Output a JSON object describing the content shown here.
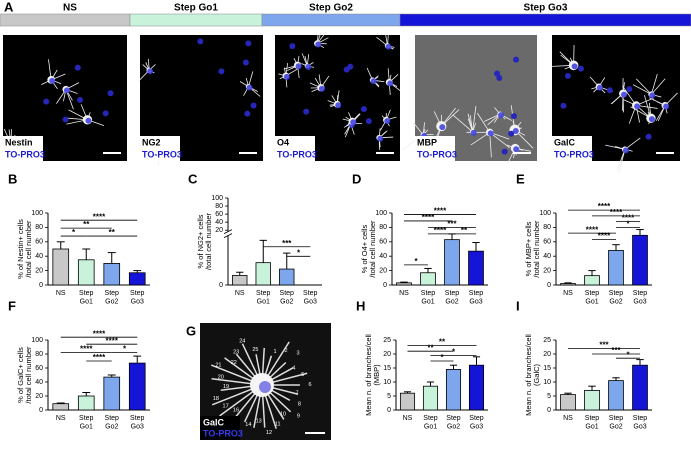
{
  "panel_a": {
    "label": "A",
    "stages": [
      {
        "name": "NS",
        "color": "#c8c8c8"
      },
      {
        "name": "Step Go1",
        "color": "#c9f2db"
      },
      {
        "name": "Step Go2",
        "color": "#7ea6ec"
      },
      {
        "name": "Step Go3",
        "color": "#1515d8"
      }
    ],
    "images": [
      {
        "label": "Nestin",
        "stain": "TO-PRO3"
      },
      {
        "label": "NG2",
        "stain": "TO-PRO3"
      },
      {
        "label": "O4",
        "stain": "TO-PRO3"
      },
      {
        "label": "MBP",
        "stain": "TO-PRO3"
      },
      {
        "label": "GalC",
        "stain": "TO-PRO3"
      }
    ]
  },
  "panel_g": {
    "label": "G",
    "image_label": "GalC",
    "stain": "TO-PRO3",
    "numbers": [
      "1",
      "2",
      "3",
      "4",
      "5",
      "6",
      "7",
      "8",
      "9",
      "10",
      "11",
      "12",
      "13",
      "14",
      "15",
      "16",
      "17",
      "18",
      "19",
      "20",
      "21",
      "22",
      "23",
      "24",
      "25"
    ]
  },
  "chart_data": [
    {
      "type": "bar",
      "panel": "B",
      "ylabel": [
        "% of Nestin+ cells",
        "/total cell number"
      ],
      "categories": [
        [
          "NS"
        ],
        [
          "Step",
          "Go1"
        ],
        [
          "Step",
          "Go2"
        ],
        [
          "Step",
          "Go3"
        ]
      ],
      "colors": [
        "#c8c8c8",
        "#c9f2db",
        "#7ea6ec",
        "#1515d8"
      ],
      "values": [
        50,
        35,
        30,
        17
      ],
      "errors": [
        10,
        15,
        15,
        3
      ],
      "ylim": [
        0,
        100
      ],
      "yticks": [
        0,
        20,
        40,
        60,
        80,
        100
      ],
      "significance": [
        {
          "from": 0,
          "to": 3,
          "label": "****",
          "y": 90
        },
        {
          "from": 0,
          "to": 2,
          "label": "**",
          "y": 79
        },
        {
          "from": 0,
          "to": 1,
          "label": "*",
          "y": 68
        },
        {
          "from": 1,
          "to": 3,
          "label": "**",
          "y": 68
        }
      ]
    },
    {
      "type": "bar",
      "panel": "C",
      "ylabel": [
        "% of NG2+ cells",
        "/total cell number"
      ],
      "categories": [
        [
          "NS"
        ],
        [
          "Step",
          "Go1"
        ],
        [
          "Step",
          "Go2"
        ],
        [
          "Step",
          "Go3"
        ]
      ],
      "colors": [
        "#c8c8c8",
        "#c9f2db",
        "#7ea6ec",
        "#1515d8"
      ],
      "values": [
        3,
        7,
        5,
        0
      ],
      "errors": [
        1,
        7,
        5,
        0
      ],
      "ylim": [
        0,
        100
      ],
      "yticks": [
        0,
        20,
        40,
        60,
        80,
        100
      ],
      "axis_break": [
        15,
        20
      ],
      "significance": [
        {
          "from": 1,
          "to": 3,
          "label": "***",
          "y": 12
        },
        {
          "from": 2,
          "to": 3,
          "label": "*",
          "y": 9
        }
      ]
    },
    {
      "type": "bar",
      "panel": "D",
      "ylabel": [
        "% of O4+ cells",
        "/total cell number"
      ],
      "categories": [
        [
          "NS"
        ],
        [
          "Step",
          "Go1"
        ],
        [
          "Step",
          "Go2"
        ],
        [
          "Step",
          "Go3"
        ]
      ],
      "colors": [
        "#c8c8c8",
        "#c9f2db",
        "#7ea6ec",
        "#1515d8"
      ],
      "values": [
        3,
        17,
        63,
        47
      ],
      "errors": [
        1,
        6,
        8,
        12
      ],
      "ylim": [
        0,
        100
      ],
      "yticks": [
        0,
        20,
        40,
        60,
        80,
        100
      ],
      "significance": [
        {
          "from": 0,
          "to": 3,
          "label": "****",
          "y": 98
        },
        {
          "from": 0,
          "to": 2,
          "label": "****",
          "y": 89
        },
        {
          "from": 1,
          "to": 3,
          "label": "***",
          "y": 80
        },
        {
          "from": 1,
          "to": 2,
          "label": "****",
          "y": 71
        },
        {
          "from": 2,
          "to": 3,
          "label": "**",
          "y": 71
        },
        {
          "from": 0,
          "to": 1,
          "label": "*",
          "y": 28
        }
      ]
    },
    {
      "type": "bar",
      "panel": "E",
      "ylabel": [
        "% of MBP+ cells",
        "/total cell number"
      ],
      "categories": [
        [
          "NS"
        ],
        [
          "Step",
          "Go1"
        ],
        [
          "Step",
          "Go2"
        ],
        [
          "Step",
          "Go3"
        ]
      ],
      "colors": [
        "#c8c8c8",
        "#c9f2db",
        "#7ea6ec",
        "#1515d8"
      ],
      "values": [
        2,
        13,
        48,
        69
      ],
      "errors": [
        1,
        7,
        8,
        8
      ],
      "ylim": [
        0,
        100
      ],
      "yticks": [
        0,
        20,
        40,
        60,
        80,
        100
      ],
      "significance": [
        {
          "from": 0,
          "to": 3,
          "label": "****",
          "y": 104
        },
        {
          "from": 1,
          "to": 3,
          "label": "****",
          "y": 96
        },
        {
          "from": 2,
          "to": 3,
          "label": "****",
          "y": 88
        },
        {
          "from": 0,
          "to": 2,
          "label": "****",
          "y": 72
        },
        {
          "from": 1,
          "to": 2,
          "label": "****",
          "y": 63
        },
        {
          "from": 2,
          "to": 3,
          "label": "*",
          "y": 80
        }
      ]
    },
    {
      "type": "bar",
      "panel": "F",
      "ylabel": [
        "% of GalC+ cells",
        "/total cell number"
      ],
      "categories": [
        [
          "NS"
        ],
        [
          "Step",
          "Go1"
        ],
        [
          "Step",
          "Go2"
        ],
        [
          "Step",
          "Go3"
        ]
      ],
      "colors": [
        "#c8c8c8",
        "#c9f2db",
        "#7ea6ec",
        "#1515d8"
      ],
      "values": [
        9,
        20,
        47,
        67
      ],
      "errors": [
        1,
        5,
        3,
        10
      ],
      "ylim": [
        0,
        100
      ],
      "yticks": [
        0,
        20,
        40,
        60,
        80,
        100
      ],
      "significance": [
        {
          "from": 0,
          "to": 3,
          "label": "****",
          "y": 104
        },
        {
          "from": 1,
          "to": 3,
          "label": "****",
          "y": 94
        },
        {
          "from": 0,
          "to": 2,
          "label": "****",
          "y": 82
        },
        {
          "from": 2,
          "to": 3,
          "label": "*",
          "y": 82
        },
        {
          "from": 1,
          "to": 2,
          "label": "****",
          "y": 70
        }
      ]
    },
    {
      "type": "bar",
      "panel": "H",
      "ylabel": [
        "Mean n. of branches/cell",
        "(MBP)"
      ],
      "categories": [
        [
          "NS"
        ],
        [
          "Step",
          "Go1"
        ],
        [
          "Step",
          "Go2"
        ],
        [
          "Step",
          "Go3"
        ]
      ],
      "colors": [
        "#c8c8c8",
        "#c9f2db",
        "#7ea6ec",
        "#1515d8"
      ],
      "values": [
        6,
        8.5,
        14.5,
        16
      ],
      "errors": [
        0.5,
        1.5,
        1.5,
        3
      ],
      "ylim": [
        0,
        25
      ],
      "yticks": [
        0,
        5,
        10,
        15,
        20,
        25
      ],
      "significance": [
        {
          "from": 0,
          "to": 3,
          "label": "**",
          "y": 23
        },
        {
          "from": 0,
          "to": 2,
          "label": "**",
          "y": 21
        },
        {
          "from": 1,
          "to": 3,
          "label": "*",
          "y": 19.5
        },
        {
          "from": 1,
          "to": 2,
          "label": "*",
          "y": 17.5
        }
      ]
    },
    {
      "type": "bar",
      "panel": "I",
      "ylabel": [
        "Mean n. of branches/cell",
        "(GalC)"
      ],
      "categories": [
        [
          "NS"
        ],
        [
          "Step",
          "Go1"
        ],
        [
          "Step",
          "Go2"
        ],
        [
          "Step",
          "Go3"
        ]
      ],
      "colors": [
        "#c8c8c8",
        "#c9f2db",
        "#7ea6ec",
        "#1515d8"
      ],
      "values": [
        5.5,
        7,
        10.5,
        16
      ],
      "errors": [
        0.5,
        1.5,
        1,
        2
      ],
      "ylim": [
        0,
        25
      ],
      "yticks": [
        0,
        5,
        10,
        15,
        20,
        25
      ],
      "significance": [
        {
          "from": 0,
          "to": 3,
          "label": "***",
          "y": 22
        },
        {
          "from": 1,
          "to": 3,
          "label": "***",
          "y": 20
        },
        {
          "from": 2,
          "to": 3,
          "label": "*",
          "y": 18.5
        }
      ]
    }
  ]
}
